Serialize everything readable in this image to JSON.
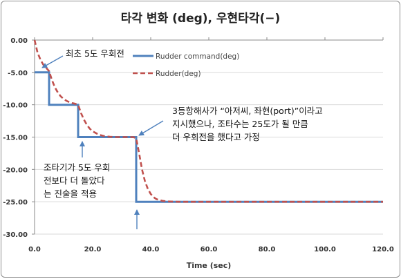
{
  "chart_data": {
    "type": "line",
    "title": "타각 변화 (deg), 우현타각(−)",
    "xlabel": "Time (sec)",
    "ylabel": "",
    "xlim": [
      0,
      120
    ],
    "ylim": [
      -30,
      0
    ],
    "xticks": [
      0,
      20,
      40,
      60,
      80,
      100,
      120
    ],
    "xtick_labels": [
      "0.0",
      "20.0",
      "40.0",
      "60.0",
      "80.0",
      "100.0",
      "120.0"
    ],
    "yticks": [
      0,
      -5,
      -10,
      -15,
      -20,
      -25,
      -30
    ],
    "ytick_labels": [
      "0.00",
      "-5.00",
      "-10.00",
      "-15.00",
      "-20.00",
      "-25.00",
      "-30.00"
    ],
    "grid": "horizontal",
    "series": [
      {
        "name": "Rudder command(deg)",
        "style": "solid",
        "color": "#4f81bd",
        "x": [
          0,
          5,
          5,
          15,
          15,
          35,
          35,
          120
        ],
        "y": [
          -5,
          -5,
          -10,
          -10,
          -15,
          -15,
          -25,
          -25
        ]
      },
      {
        "name": "Rudder(deg)",
        "style": "dashed",
        "color": "#c0504d",
        "x": [
          0,
          1,
          2,
          3,
          4,
          5,
          6,
          7,
          8,
          9,
          10,
          11,
          12,
          13,
          14,
          15,
          16,
          17,
          18,
          19,
          20,
          22,
          24,
          26,
          28,
          30,
          32,
          34,
          35,
          36,
          37,
          38,
          39,
          40,
          41,
          42,
          44,
          46,
          50,
          60,
          80,
          100,
          120
        ],
        "y": [
          0,
          -1.9,
          -3.0,
          -3.8,
          -4.3,
          -4.8,
          -6.2,
          -7.3,
          -8.1,
          -8.7,
          -9.1,
          -9.4,
          -9.6,
          -9.75,
          -9.85,
          -10.0,
          -11.3,
          -12.3,
          -13.1,
          -13.7,
          -14.1,
          -14.6,
          -14.85,
          -14.95,
          -15.0,
          -15.0,
          -15.0,
          -15.0,
          -15.2,
          -17.5,
          -20.0,
          -21.8,
          -23.0,
          -23.8,
          -24.3,
          -24.6,
          -24.85,
          -24.95,
          -25.0,
          -25.0,
          -25.0,
          -25.0,
          -25.0
        ]
      }
    ],
    "annotations": [
      {
        "lines": [
          "최초 5도 우회전"
        ]
      },
      {
        "lines": [
          "3등항해사가 “아저씨, 좌현(port)”이라고",
          "지시했으나, 조타수는 25도가 될 만큼",
          "더 우회전을 했다고 가정"
        ]
      },
      {
        "lines": [
          "조타기가 5도 우회",
          "전보다 더 돌았다",
          "는 진술을 적용"
        ]
      }
    ]
  }
}
